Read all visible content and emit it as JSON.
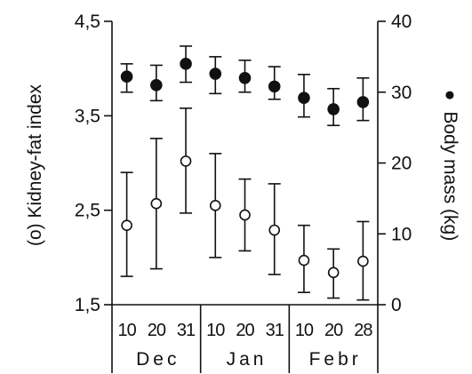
{
  "chart_data": {
    "type": "scatter",
    "left_axis": {
      "title": "(o) Kidney-fat index",
      "ylim": [
        1.5,
        4.5
      ],
      "ticks": [
        1.5,
        2.5,
        3.5,
        4.5
      ],
      "tick_labels": [
        "1,5",
        "2,5",
        "3,5",
        "4,5"
      ]
    },
    "right_axis": {
      "title_symbol": "●",
      "title_text": "Body mass (kg)",
      "ylim": [
        0,
        40
      ],
      "ticks": [
        0,
        10,
        20,
        30,
        40
      ],
      "tick_labels": [
        "0",
        "10",
        "20",
        "30",
        "40"
      ]
    },
    "x_labels": [
      "10",
      "20",
      "31",
      "10",
      "20",
      "31",
      "10",
      "20",
      "28"
    ],
    "months": [
      "Dec",
      "Jan",
      "Febr"
    ],
    "grid": false,
    "series": [
      {
        "marker": "open-circle",
        "axis": "left",
        "values": [
          2.34,
          2.57,
          3.02,
          2.55,
          2.45,
          2.29,
          1.97,
          1.84,
          1.96
        ],
        "err_low": [
          1.8,
          1.88,
          2.47,
          2.0,
          2.07,
          1.82,
          1.63,
          1.57,
          1.55
        ],
        "err_high": [
          2.9,
          3.26,
          3.58,
          3.1,
          2.83,
          2.78,
          2.34,
          2.09,
          2.38
        ]
      },
      {
        "marker": "filled-circle",
        "axis": "right",
        "values": [
          32.2,
          31.0,
          34.0,
          32.6,
          32.0,
          30.8,
          29.2,
          27.6,
          28.6
        ],
        "err_low": [
          30.0,
          28.8,
          31.4,
          29.8,
          30.0,
          29.0,
          26.5,
          25.3,
          26.0
        ],
        "err_high": [
          34.0,
          33.8,
          36.5,
          35.0,
          34.5,
          33.6,
          32.5,
          30.5,
          32.0
        ]
      }
    ]
  }
}
